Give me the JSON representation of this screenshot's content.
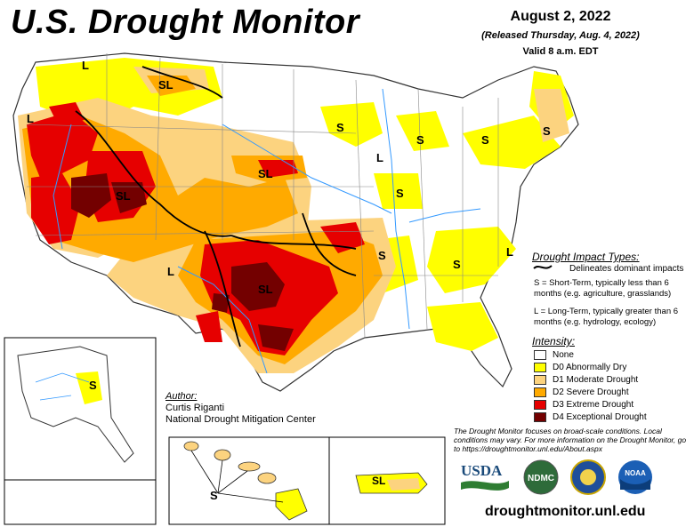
{
  "header": {
    "title": "U.S. Drought Monitor",
    "date": "August 2, 2022",
    "released": "(Released Thursday, Aug. 4, 2022)",
    "valid": "Valid 8 a.m. EDT"
  },
  "impact_types": {
    "title": "Drought Impact Types:",
    "delineates": "Delineates dominant impacts",
    "short_term": "S = Short-Term, typically less than 6 months (e.g. agriculture, grasslands)",
    "long_term": "L = Long-Term, typically greater than 6 months (e.g. hydrology, ecology)"
  },
  "intensity": {
    "title": "Intensity:",
    "categories": [
      {
        "label": "None",
        "color": "#ffffff"
      },
      {
        "label": "D0 Abnormally Dry",
        "color": "#ffff00"
      },
      {
        "label": "D1 Moderate Drought",
        "color": "#fcd37f"
      },
      {
        "label": "D2 Severe Drought",
        "color": "#ffaa00"
      },
      {
        "label": "D3 Extreme Drought",
        "color": "#e60000"
      },
      {
        "label": "D4 Exceptional Drought",
        "color": "#730000"
      }
    ]
  },
  "author": {
    "heading": "Author:",
    "name": "Curtis Riganti",
    "org": "National Drought Mitigation Center"
  },
  "note": "The Drought Monitor focuses on broad-scale conditions. Local conditions may vary. For more information on the Drought Monitor, go to https://droughtmonitor.unl.edu/About.aspx",
  "logos": {
    "usda": "USDA",
    "ndmc": "NDMC",
    "noaa": "NOAA"
  },
  "website": "droughtmonitor.unl.edu",
  "map_labels": {
    "L": "L",
    "S": "S",
    "SL": "SL"
  }
}
